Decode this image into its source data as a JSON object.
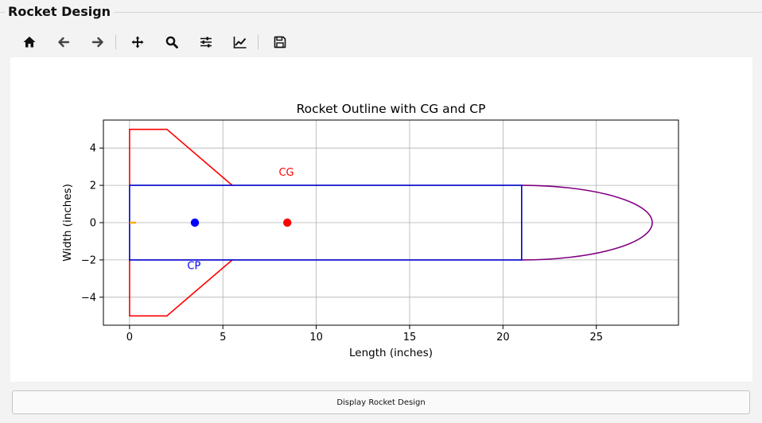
{
  "window": {
    "group_title": "Rocket Design"
  },
  "toolbar": {
    "buttons": [
      {
        "name": "home-icon"
      },
      {
        "name": "back-arrow-icon"
      },
      {
        "name": "forward-arrow-icon"
      },
      {
        "name": "pan-icon"
      },
      {
        "name": "zoom-icon"
      },
      {
        "name": "configure-subplots-icon"
      },
      {
        "name": "edit-axis-icon"
      },
      {
        "name": "save-icon"
      }
    ]
  },
  "chart_data": {
    "type": "line",
    "title": "Rocket Outline with CG and CP",
    "xlabel": "Length (inches)",
    "ylabel": "Width (inches)",
    "xlim": [
      -1.4,
      29.4
    ],
    "ylim": [
      -5.5,
      5.5
    ],
    "xticks": [
      0,
      5,
      10,
      15,
      20,
      25
    ],
    "yticks": [
      -4,
      -2,
      0,
      2,
      4
    ],
    "grid": true,
    "body": {
      "color": "#0000cc",
      "points": [
        [
          0,
          2
        ],
        [
          21,
          2
        ],
        [
          21,
          -2
        ],
        [
          0,
          -2
        ],
        [
          0,
          2
        ]
      ]
    },
    "fins": {
      "color": "#ff0000",
      "upper": [
        [
          0,
          2
        ],
        [
          0,
          5
        ],
        [
          2,
          5
        ],
        [
          5.5,
          2
        ]
      ],
      "lower": [
        [
          0,
          -2
        ],
        [
          0,
          -5
        ],
        [
          2,
          -5
        ],
        [
          5.5,
          -2
        ]
      ]
    },
    "nose_cone": {
      "color": "#800080",
      "type": "ellipse",
      "base_x": 21,
      "length": 7,
      "half_width": 2
    },
    "nozzle": {
      "color": "#ffa500",
      "points": [
        [
          0,
          0
        ],
        [
          0.35,
          0
        ]
      ]
    },
    "points": [
      {
        "label": "CG",
        "x": 8.45,
        "y": 0,
        "color": "#ff0000",
        "label_x": 8.4,
        "label_y": 2.7
      },
      {
        "label": "CP",
        "x": 3.5,
        "y": 0,
        "color": "#0000ff",
        "label_x": 3.45,
        "label_y": -2.3
      }
    ]
  },
  "bottom": {
    "display_button_label": "Display Rocket Design"
  }
}
